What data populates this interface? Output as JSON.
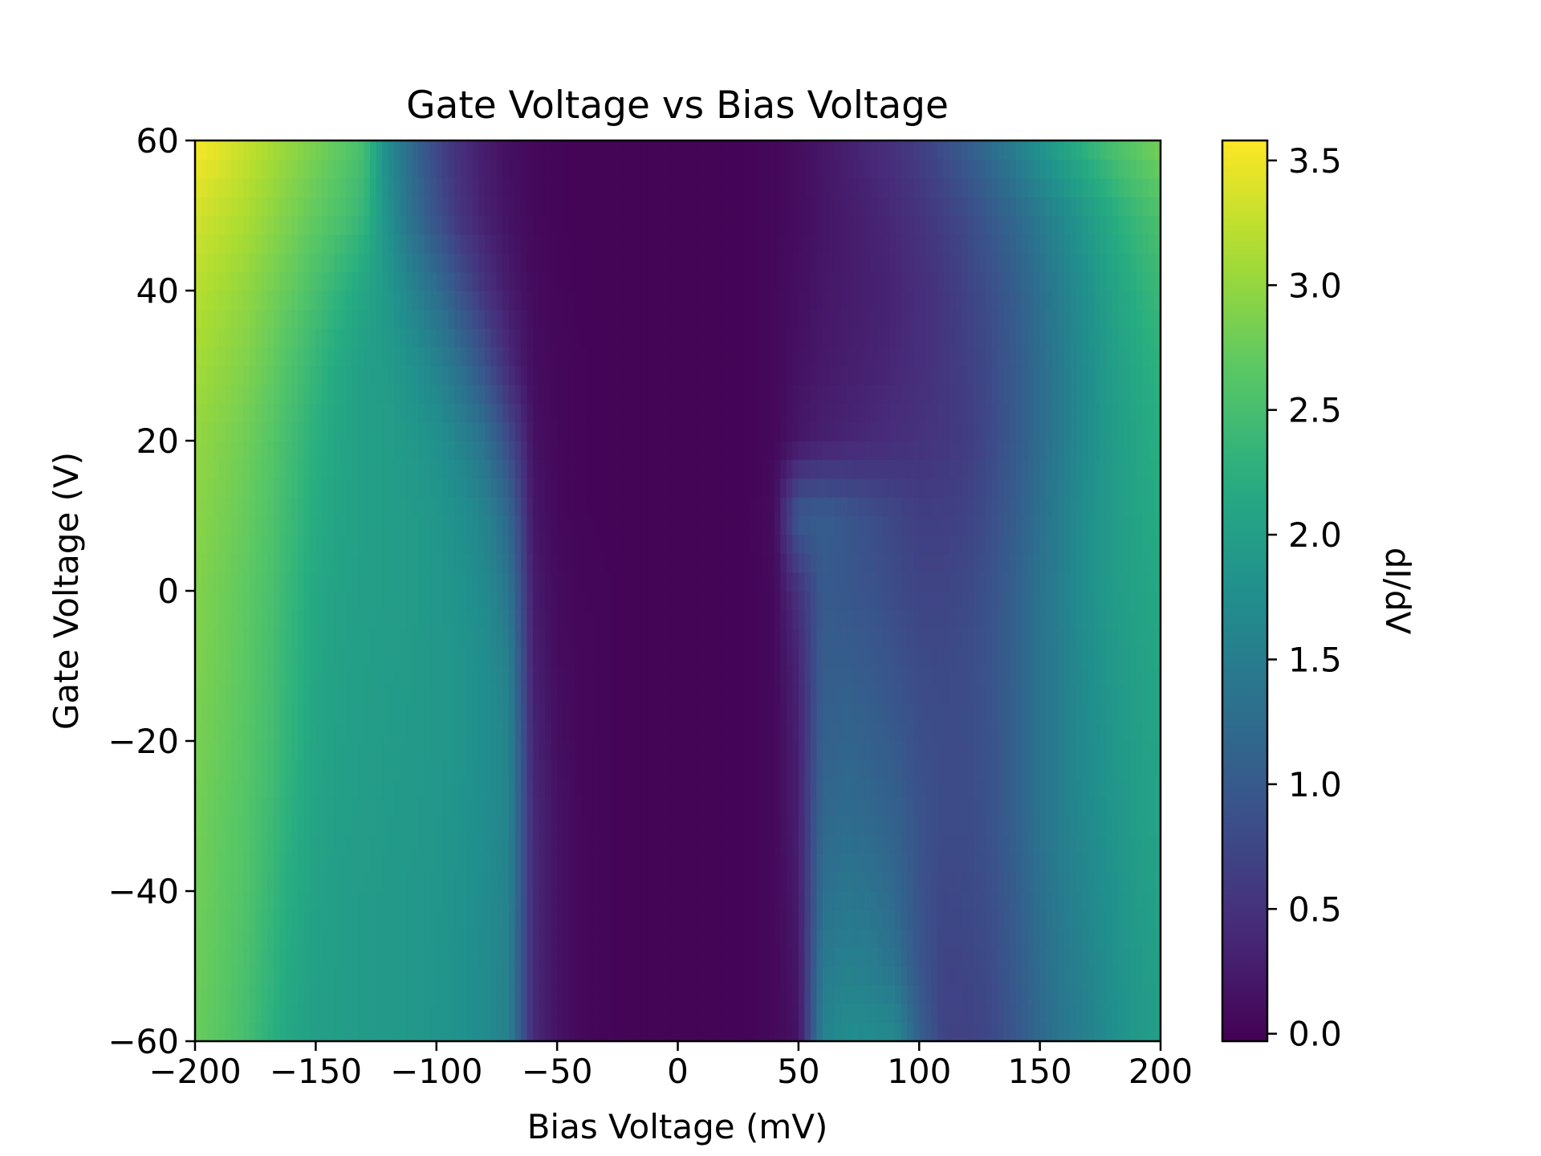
{
  "chart_data": {
    "type": "heatmap",
    "title": "Gate Voltage vs Bias Voltage",
    "xlabel": "Bias Voltage (mV)",
    "ylabel": "Gate Voltage (V)",
    "colorbar_label": "dI/dV",
    "colormap": "viridis",
    "xlim": [
      -200,
      200
    ],
    "ylim": [
      -60,
      60
    ],
    "clim": [
      -0.03,
      3.58
    ],
    "grid": false,
    "x_ticks": [
      -200,
      -150,
      -100,
      -50,
      0,
      50,
      100,
      150,
      200
    ],
    "x_tick_labels": [
      "−200",
      "−150",
      "−100",
      "−50",
      "0",
      "50",
      "100",
      "150",
      "200"
    ],
    "y_ticks": [
      -60,
      -40,
      -20,
      0,
      20,
      40,
      60
    ],
    "y_tick_labels": [
      "−60",
      "−40",
      "−20",
      "0",
      "20",
      "40",
      "60"
    ],
    "colorbar_ticks": [
      0.0,
      0.5,
      1.0,
      1.5,
      2.0,
      2.5,
      3.0,
      3.5
    ],
    "colorbar_tick_labels": [
      "0.0",
      "0.5",
      "1.0",
      "1.5",
      "2.0",
      "2.5",
      "3.0",
      "3.5"
    ],
    "x": [
      -200,
      -190,
      -180,
      -170,
      -160,
      -150,
      -140,
      -130,
      -120,
      -110,
      -100,
      -90,
      -80,
      -70,
      -60,
      -50,
      -40,
      -30,
      -20,
      -10,
      0,
      10,
      20,
      30,
      40,
      50,
      60,
      70,
      80,
      90,
      100,
      110,
      120,
      130,
      140,
      150,
      160,
      170,
      180,
      190,
      200
    ],
    "y": [
      -60,
      -50,
      -40,
      -30,
      -20,
      -10,
      0,
      10,
      20,
      30,
      40,
      50,
      60
    ],
    "z": [
      [
        2.75,
        2.65,
        2.5,
        2.3,
        2.1,
        2.0,
        1.98,
        1.95,
        1.92,
        1.9,
        1.85,
        1.8,
        1.7,
        1.55,
        0.4,
        0.15,
        0.05,
        0.02,
        0.01,
        0.01,
        0.01,
        0.01,
        0.01,
        0.02,
        0.05,
        0.15,
        1.6,
        1.75,
        1.72,
        1.7,
        1.1,
        0.7,
        0.68,
        0.75,
        0.95,
        1.2,
        1.4,
        1.55,
        1.75,
        1.9,
        2.0
      ],
      [
        2.78,
        2.68,
        2.55,
        2.35,
        2.15,
        2.02,
        1.98,
        1.95,
        1.92,
        1.9,
        1.86,
        1.8,
        1.7,
        1.55,
        0.4,
        0.15,
        0.05,
        0.02,
        0.01,
        0.01,
        0.01,
        0.01,
        0.01,
        0.02,
        0.05,
        0.2,
        1.45,
        1.55,
        1.5,
        1.35,
        0.95,
        0.7,
        0.72,
        0.8,
        1.0,
        1.25,
        1.45,
        1.6,
        1.78,
        1.92,
        2.02
      ],
      [
        2.8,
        2.7,
        2.6,
        2.4,
        2.2,
        2.05,
        1.98,
        1.95,
        1.93,
        1.9,
        1.87,
        1.82,
        1.72,
        1.58,
        0.4,
        0.15,
        0.05,
        0.02,
        0.01,
        0.01,
        0.01,
        0.01,
        0.01,
        0.02,
        0.05,
        0.25,
        1.3,
        1.4,
        1.35,
        1.2,
        0.9,
        0.75,
        0.78,
        0.85,
        1.05,
        1.3,
        1.5,
        1.65,
        1.8,
        1.95,
        2.05
      ],
      [
        2.82,
        2.72,
        2.62,
        2.45,
        2.25,
        2.08,
        2.0,
        1.97,
        1.94,
        1.92,
        1.88,
        1.83,
        1.74,
        1.6,
        0.4,
        0.15,
        0.05,
        0.02,
        0.01,
        0.01,
        0.01,
        0.01,
        0.01,
        0.02,
        0.05,
        0.3,
        1.2,
        1.25,
        1.2,
        1.1,
        0.9,
        0.8,
        0.8,
        0.9,
        1.1,
        1.35,
        1.55,
        1.7,
        1.85,
        1.98,
        2.08
      ],
      [
        2.85,
        2.75,
        2.65,
        2.5,
        2.3,
        2.1,
        2.02,
        1.98,
        1.95,
        1.93,
        1.9,
        1.85,
        1.75,
        1.6,
        0.35,
        0.12,
        0.04,
        0.02,
        0.01,
        0.01,
        0.01,
        0.01,
        0.01,
        0.02,
        0.05,
        0.3,
        1.1,
        1.15,
        1.1,
        1.0,
        0.85,
        0.8,
        0.82,
        0.9,
        1.1,
        1.35,
        1.55,
        1.72,
        1.87,
        2.0,
        2.1
      ],
      [
        2.88,
        2.78,
        2.68,
        2.52,
        2.32,
        2.12,
        2.03,
        1.99,
        1.96,
        1.94,
        1.9,
        1.85,
        1.75,
        1.55,
        0.3,
        0.1,
        0.04,
        0.02,
        0.01,
        0.01,
        0.01,
        0.01,
        0.01,
        0.02,
        0.06,
        0.35,
        1.05,
        1.05,
        1.0,
        0.9,
        0.8,
        0.78,
        0.82,
        0.92,
        1.1,
        1.35,
        1.55,
        1.75,
        1.9,
        2.02,
        2.12
      ],
      [
        2.9,
        2.8,
        2.7,
        2.55,
        2.35,
        2.15,
        2.05,
        2.0,
        1.98,
        1.95,
        1.9,
        1.82,
        1.7,
        1.4,
        0.25,
        0.08,
        0.03,
        0.02,
        0.01,
        0.01,
        0.01,
        0.01,
        0.01,
        0.02,
        0.06,
        0.5,
        1.0,
        0.95,
        0.9,
        0.8,
        0.72,
        0.72,
        0.78,
        0.9,
        1.1,
        1.35,
        1.57,
        1.78,
        1.95,
        2.05,
        2.15
      ],
      [
        2.95,
        2.85,
        2.75,
        2.6,
        2.4,
        2.2,
        2.08,
        2.02,
        1.98,
        1.95,
        1.88,
        1.78,
        1.6,
        1.2,
        0.2,
        0.06,
        0.02,
        0.01,
        0.01,
        0.01,
        0.01,
        0.01,
        0.01,
        0.02,
        0.1,
        1.0,
        1.05,
        0.95,
        0.85,
        0.75,
        0.65,
        0.65,
        0.7,
        0.85,
        1.05,
        1.3,
        1.55,
        1.78,
        1.95,
        2.08,
        2.2
      ],
      [
        3.0,
        2.9,
        2.8,
        2.65,
        2.45,
        2.25,
        2.1,
        2.02,
        1.98,
        1.9,
        1.8,
        1.6,
        1.35,
        0.8,
        0.15,
        0.05,
        0.02,
        0.01,
        0.01,
        0.01,
        0.01,
        0.01,
        0.01,
        0.02,
        0.05,
        0.2,
        0.3,
        0.35,
        0.4,
        0.45,
        0.5,
        0.55,
        0.62,
        0.78,
        1.0,
        1.25,
        1.5,
        1.75,
        1.95,
        2.1,
        2.25
      ],
      [
        3.1,
        3.0,
        2.9,
        2.75,
        2.55,
        2.35,
        2.15,
        2.0,
        1.95,
        1.8,
        1.6,
        1.3,
        0.9,
        0.4,
        0.1,
        0.04,
        0.02,
        0.01,
        0.01,
        0.01,
        0.01,
        0.01,
        0.01,
        0.02,
        0.05,
        0.15,
        0.22,
        0.28,
        0.32,
        0.38,
        0.45,
        0.55,
        0.65,
        0.8,
        1.0,
        1.25,
        1.5,
        1.75,
        1.98,
        2.15,
        2.3
      ],
      [
        3.2,
        3.1,
        3.0,
        2.85,
        2.7,
        2.5,
        2.3,
        2.1,
        1.9,
        1.6,
        1.3,
        0.9,
        0.5,
        0.25,
        0.08,
        0.03,
        0.01,
        0.01,
        0.01,
        0.01,
        0.01,
        0.01,
        0.01,
        0.02,
        0.05,
        0.12,
        0.2,
        0.25,
        0.3,
        0.35,
        0.45,
        0.55,
        0.7,
        0.85,
        1.05,
        1.3,
        1.55,
        1.8,
        2.05,
        2.25,
        2.4
      ],
      [
        3.35,
        3.25,
        3.15,
        3.0,
        2.85,
        2.7,
        2.55,
        2.35,
        1.8,
        1.3,
        0.9,
        0.5,
        0.3,
        0.15,
        0.06,
        0.02,
        0.01,
        0.01,
        0.01,
        0.01,
        0.01,
        0.01,
        0.01,
        0.02,
        0.05,
        0.1,
        0.18,
        0.25,
        0.32,
        0.4,
        0.5,
        0.65,
        0.8,
        1.0,
        1.2,
        1.45,
        1.7,
        1.95,
        2.2,
        2.4,
        2.55
      ],
      [
        3.55,
        3.45,
        3.3,
        3.15,
        3.0,
        2.85,
        2.7,
        2.5,
        1.7,
        1.2,
        0.75,
        0.45,
        0.25,
        0.12,
        0.05,
        0.02,
        0.01,
        0.01,
        0.01,
        0.01,
        0.01,
        0.01,
        0.01,
        0.02,
        0.05,
        0.1,
        0.2,
        0.3,
        0.4,
        0.5,
        0.65,
        0.85,
        1.05,
        1.3,
        1.55,
        1.85,
        2.1,
        2.35,
        2.55,
        2.7,
        2.85
      ]
    ]
  }
}
